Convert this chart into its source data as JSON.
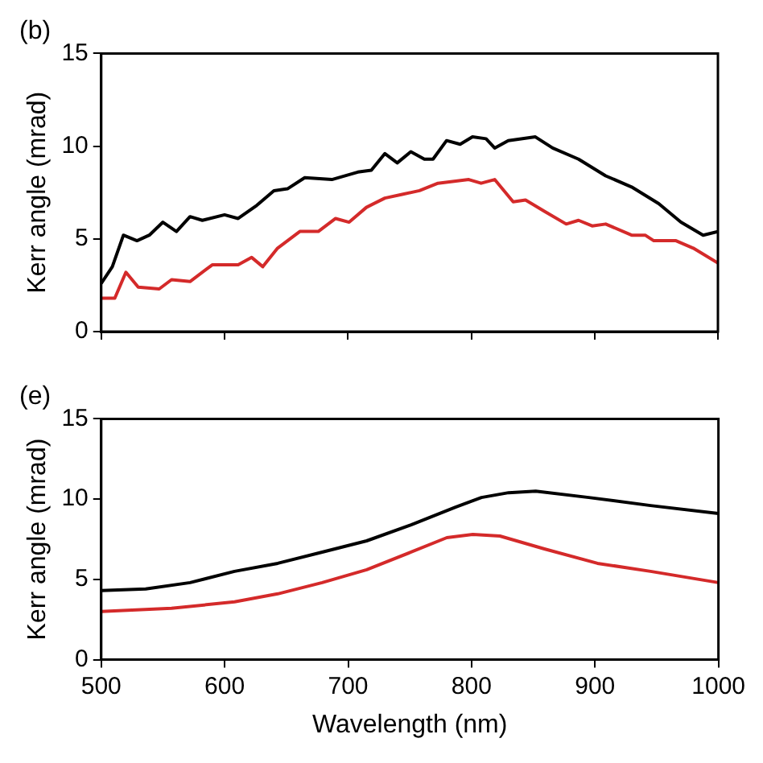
{
  "chart_data": [
    {
      "type": "line",
      "title": "(b)",
      "ylabel": "Kerr angle (mrad)",
      "xlim": [
        500,
        1000
      ],
      "xticks": [
        500,
        600,
        700,
        800,
        900,
        1000
      ],
      "ylim": [
        0,
        15
      ],
      "yticks": [
        0,
        5,
        10,
        15
      ],
      "tick_labels": "y",
      "grid": false,
      "legend": false,
      "marker": "none",
      "series": [
        {
          "color": "#000000",
          "x": [
            500,
            509,
            518,
            529,
            539,
            550,
            561,
            572,
            582,
            600,
            611,
            626,
            640,
            651,
            665,
            687,
            708,
            719,
            730,
            740,
            751,
            762,
            769,
            780,
            791,
            801,
            812,
            819,
            830,
            852,
            866,
            887,
            909,
            930,
            952,
            970,
            988,
            1000
          ],
          "values": [
            2.6,
            3.5,
            5.2,
            4.9,
            5.2,
            5.9,
            5.4,
            6.2,
            6.0,
            6.3,
            6.1,
            6.8,
            7.6,
            7.7,
            8.3,
            8.2,
            8.6,
            8.7,
            9.6,
            9.1,
            9.7,
            9.3,
            9.3,
            10.3,
            10.1,
            10.5,
            10.4,
            9.9,
            10.3,
            10.5,
            9.9,
            9.3,
            8.4,
            7.8,
            6.9,
            5.9,
            5.2,
            5.4
          ]
        },
        {
          "color": "#d42a2a",
          "x": [
            500,
            511,
            520,
            530,
            547,
            557,
            572,
            590,
            611,
            622,
            631,
            643,
            661,
            676,
            690,
            701,
            715,
            730,
            744,
            758,
            773,
            798,
            808,
            819,
            834,
            844,
            859,
            877,
            887,
            898,
            909,
            930,
            941,
            948,
            966,
            980,
            1000
          ],
          "values": [
            1.8,
            1.8,
            3.2,
            2.4,
            2.3,
            2.8,
            2.7,
            3.6,
            3.6,
            4.0,
            3.5,
            4.5,
            5.4,
            5.4,
            6.1,
            5.9,
            6.7,
            7.2,
            7.4,
            7.6,
            8.0,
            8.2,
            8.0,
            8.2,
            7.0,
            7.1,
            6.5,
            5.8,
            6.0,
            5.7,
            5.8,
            5.2,
            5.2,
            4.9,
            4.9,
            4.5,
            3.7
          ]
        }
      ]
    },
    {
      "type": "line",
      "title": "(e)",
      "xlabel": "Wavelength (nm)",
      "ylabel": "Kerr angle (mrad)",
      "xlim": [
        500,
        1000
      ],
      "xticks": [
        500,
        600,
        700,
        800,
        900,
        1000
      ],
      "ylim": [
        0,
        15
      ],
      "yticks": [
        0,
        5,
        10,
        15
      ],
      "grid": false,
      "legend": false,
      "marker": "none",
      "series": [
        {
          "color": "#000000",
          "x": [
            500,
            536,
            572,
            608,
            643,
            679,
            715,
            751,
            787,
            808,
            830,
            852,
            895,
            945,
            1000
          ],
          "values": [
            4.3,
            4.4,
            4.8,
            5.5,
            6.0,
            6.7,
            7.4,
            8.4,
            9.5,
            10.1,
            10.4,
            10.5,
            10.1,
            9.6,
            9.1
          ]
        },
        {
          "color": "#d42a2a",
          "x": [
            500,
            557,
            608,
            643,
            679,
            715,
            751,
            780,
            801,
            823,
            859,
            902,
            945,
            1000
          ],
          "values": [
            3.0,
            3.2,
            3.6,
            4.1,
            4.8,
            5.6,
            6.7,
            7.6,
            7.8,
            7.7,
            6.9,
            6.0,
            5.5,
            4.8
          ]
        }
      ]
    }
  ]
}
